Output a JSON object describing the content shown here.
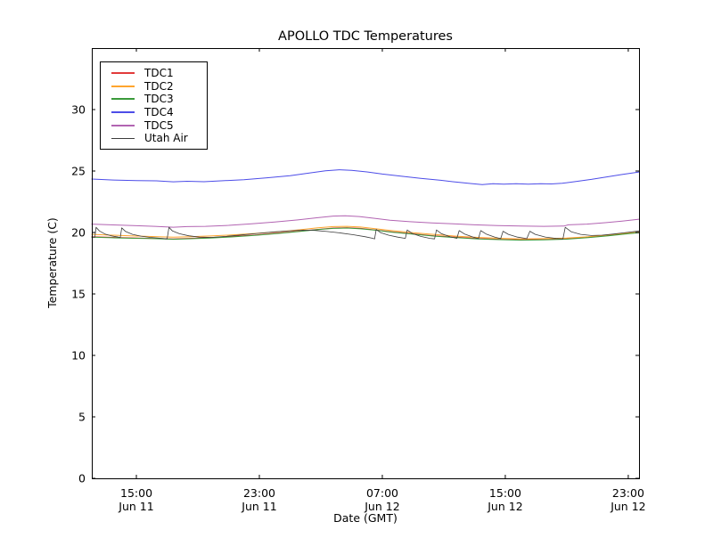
{
  "figure": {
    "title": "APOLLO TDC Temperatures",
    "xlabel": "Date (GMT)",
    "ylabel": "Temperature (C)"
  },
  "legend": {
    "position": "upper left",
    "items": [
      {
        "label": "TDC1",
        "color": "#e23b3b"
      },
      {
        "label": "TDC2",
        "color": "#ffa52e"
      },
      {
        "label": "TDC3",
        "color": "#3a9a3a"
      },
      {
        "label": "TDC4",
        "color": "#4d4de8"
      },
      {
        "label": "TDC5",
        "color": "#b264b2"
      },
      {
        "label": "Utah Air",
        "color": "#3c3c3c"
      }
    ]
  },
  "chart_data": {
    "type": "line",
    "title": "APOLLO TDC Temperatures",
    "xlabel": "Date (GMT)",
    "ylabel": "Temperature (C)",
    "x_unit": "hours since Jun 11 00:00 GMT",
    "xlim": [
      12.1,
      47.7
    ],
    "ylim": [
      0,
      35
    ],
    "grid": false,
    "y_ticks": [
      0,
      5,
      10,
      15,
      20,
      25,
      30
    ],
    "x_ticks": [
      {
        "hour": 15,
        "time": "15:00",
        "date": "Jun 11"
      },
      {
        "hour": 23,
        "time": "23:00",
        "date": "Jun 11"
      },
      {
        "hour": 31,
        "time": "07:00",
        "date": "Jun 12"
      },
      {
        "hour": 39,
        "time": "15:00",
        "date": "Jun 12"
      },
      {
        "hour": 47,
        "time": "23:00",
        "date": "Jun 12"
      }
    ],
    "series": [
      {
        "name": "TDC1",
        "color": "#e23b3b",
        "width": 1,
        "points": [
          [
            12.1,
            19.65
          ],
          [
            14.8,
            19.56
          ],
          [
            17.4,
            19.48
          ],
          [
            19.8,
            19.58
          ],
          [
            22.7,
            19.79
          ],
          [
            25.6,
            20.11
          ],
          [
            27.8,
            20.36
          ],
          [
            28.7,
            20.39
          ],
          [
            29.6,
            20.33
          ],
          [
            31.6,
            20.06
          ],
          [
            34.4,
            19.73
          ],
          [
            37.2,
            19.51
          ],
          [
            38.6,
            19.45
          ],
          [
            40.0,
            19.41
          ],
          [
            41.5,
            19.43
          ],
          [
            43.0,
            19.49
          ],
          [
            44.4,
            19.61
          ],
          [
            45.7,
            19.76
          ],
          [
            46.8,
            19.9
          ],
          [
            47.7,
            20.0
          ]
        ]
      },
      {
        "name": "TDC2",
        "color": "#ffa52e",
        "width": 1,
        "points": [
          [
            12.1,
            19.85
          ],
          [
            13.4,
            19.78
          ],
          [
            14.8,
            19.72
          ],
          [
            16.2,
            19.67
          ],
          [
            17.4,
            19.62
          ],
          [
            18.5,
            19.66
          ],
          [
            19.8,
            19.72
          ],
          [
            21.2,
            19.8
          ],
          [
            22.7,
            19.92
          ],
          [
            24.2,
            20.06
          ],
          [
            25.6,
            20.22
          ],
          [
            26.8,
            20.38
          ],
          [
            27.8,
            20.48
          ],
          [
            28.7,
            20.5
          ],
          [
            29.6,
            20.44
          ],
          [
            30.6,
            20.3
          ],
          [
            31.6,
            20.15
          ],
          [
            33.0,
            19.98
          ],
          [
            34.4,
            19.83
          ],
          [
            35.8,
            19.7
          ],
          [
            37.2,
            19.6
          ],
          [
            38.6,
            19.53
          ],
          [
            40.0,
            19.48
          ],
          [
            41.5,
            19.5
          ],
          [
            43.0,
            19.55
          ],
          [
            44.4,
            19.65
          ],
          [
            45.7,
            19.8
          ],
          [
            46.8,
            19.93
          ],
          [
            47.7,
            20.03
          ]
        ]
      },
      {
        "name": "TDC3",
        "color": "#3a9a3a",
        "width": 1,
        "points": [
          [
            12.1,
            19.62
          ],
          [
            13.4,
            19.57
          ],
          [
            14.8,
            19.53
          ],
          [
            16.2,
            19.5
          ],
          [
            17.4,
            19.45
          ],
          [
            18.5,
            19.49
          ],
          [
            19.8,
            19.55
          ],
          [
            21.2,
            19.64
          ],
          [
            22.7,
            19.76
          ],
          [
            24.2,
            19.92
          ],
          [
            25.6,
            20.08
          ],
          [
            26.8,
            20.23
          ],
          [
            27.8,
            20.33
          ],
          [
            28.7,
            20.36
          ],
          [
            29.6,
            20.3
          ],
          [
            30.6,
            20.18
          ],
          [
            31.6,
            20.03
          ],
          [
            33.0,
            19.86
          ],
          [
            34.4,
            19.7
          ],
          [
            35.8,
            19.58
          ],
          [
            37.2,
            19.48
          ],
          [
            38.6,
            19.42
          ],
          [
            40.0,
            19.38
          ],
          [
            41.5,
            19.4
          ],
          [
            43.0,
            19.46
          ],
          [
            44.4,
            19.58
          ],
          [
            45.7,
            19.73
          ],
          [
            46.8,
            19.88
          ],
          [
            47.7,
            19.98
          ]
        ]
      },
      {
        "name": "TDC4",
        "color": "#4d4de8",
        "width": 1,
        "points": [
          [
            12.1,
            24.35
          ],
          [
            13.5,
            24.27
          ],
          [
            15.0,
            24.22
          ],
          [
            16.3,
            24.2
          ],
          [
            17.4,
            24.12
          ],
          [
            18.3,
            24.17
          ],
          [
            19.4,
            24.13
          ],
          [
            20.5,
            24.2
          ],
          [
            22.0,
            24.3
          ],
          [
            23.5,
            24.45
          ],
          [
            25.0,
            24.62
          ],
          [
            26.3,
            24.85
          ],
          [
            27.3,
            25.02
          ],
          [
            28.2,
            25.1
          ],
          [
            29.0,
            25.06
          ],
          [
            30.0,
            24.93
          ],
          [
            31.0,
            24.75
          ],
          [
            32.2,
            24.58
          ],
          [
            33.5,
            24.4
          ],
          [
            34.8,
            24.25
          ],
          [
            35.8,
            24.1
          ],
          [
            36.8,
            23.98
          ],
          [
            37.5,
            23.9
          ],
          [
            38.2,
            23.97
          ],
          [
            38.9,
            23.93
          ],
          [
            39.7,
            23.97
          ],
          [
            40.5,
            23.93
          ],
          [
            41.3,
            23.97
          ],
          [
            42.0,
            23.95
          ],
          [
            42.7,
            24.0
          ],
          [
            43.6,
            24.15
          ],
          [
            44.6,
            24.32
          ],
          [
            45.6,
            24.52
          ],
          [
            46.6,
            24.72
          ],
          [
            47.7,
            24.92
          ]
        ]
      },
      {
        "name": "TDC5",
        "color": "#b264b2",
        "width": 1,
        "points": [
          [
            12.1,
            20.68
          ],
          [
            13.3,
            20.62
          ],
          [
            14.8,
            20.56
          ],
          [
            16.2,
            20.5
          ],
          [
            17.4,
            20.43
          ],
          [
            18.3,
            20.48
          ],
          [
            19.5,
            20.5
          ],
          [
            21.0,
            20.58
          ],
          [
            22.5,
            20.7
          ],
          [
            24.0,
            20.85
          ],
          [
            25.5,
            21.02
          ],
          [
            26.8,
            21.2
          ],
          [
            27.8,
            21.33
          ],
          [
            28.6,
            21.36
          ],
          [
            29.5,
            21.3
          ],
          [
            30.5,
            21.15
          ],
          [
            31.5,
            21.0
          ],
          [
            32.8,
            20.88
          ],
          [
            34.2,
            20.78
          ],
          [
            35.6,
            20.7
          ],
          [
            37.0,
            20.62
          ],
          [
            38.5,
            20.56
          ],
          [
            40.0,
            20.52
          ],
          [
            41.5,
            20.5
          ],
          [
            42.8,
            20.52
          ],
          [
            43.1,
            20.62
          ],
          [
            44.3,
            20.68
          ],
          [
            45.5,
            20.8
          ],
          [
            46.6,
            20.93
          ],
          [
            47.7,
            21.08
          ]
        ]
      },
      {
        "name": "Utah Air",
        "color": "#3c3c3c",
        "width": 0.8,
        "points": [
          [
            12.1,
            19.62
          ],
          [
            12.3,
            19.6
          ],
          [
            12.38,
            20.42
          ],
          [
            12.6,
            20.12
          ],
          [
            12.95,
            19.88
          ],
          [
            13.4,
            19.72
          ],
          [
            13.85,
            19.62
          ],
          [
            13.95,
            19.58
          ],
          [
            14.05,
            20.38
          ],
          [
            14.3,
            20.08
          ],
          [
            14.75,
            19.85
          ],
          [
            15.3,
            19.7
          ],
          [
            15.9,
            19.6
          ],
          [
            16.6,
            19.53
          ],
          [
            17.0,
            19.48
          ],
          [
            17.12,
            20.42
          ],
          [
            17.35,
            20.12
          ],
          [
            17.8,
            19.9
          ],
          [
            18.4,
            19.73
          ],
          [
            19.1,
            19.62
          ],
          [
            19.9,
            19.6
          ],
          [
            20.8,
            19.68
          ],
          [
            21.8,
            19.8
          ],
          [
            22.9,
            19.93
          ],
          [
            24.0,
            20.05
          ],
          [
            25.0,
            20.14
          ],
          [
            25.8,
            20.19
          ],
          [
            26.6,
            20.17
          ],
          [
            27.4,
            20.08
          ],
          [
            28.2,
            19.97
          ],
          [
            29.1,
            19.82
          ],
          [
            29.9,
            19.65
          ],
          [
            30.4,
            19.52
          ],
          [
            30.5,
            19.48
          ],
          [
            30.6,
            20.25
          ],
          [
            30.9,
            19.98
          ],
          [
            31.4,
            19.78
          ],
          [
            32.0,
            19.62
          ],
          [
            32.5,
            19.52
          ],
          [
            32.62,
            20.2
          ],
          [
            32.95,
            19.92
          ],
          [
            33.5,
            19.68
          ],
          [
            34.1,
            19.52
          ],
          [
            34.4,
            19.48
          ],
          [
            34.52,
            20.2
          ],
          [
            34.85,
            19.9
          ],
          [
            35.4,
            19.65
          ],
          [
            35.85,
            19.52
          ],
          [
            36.0,
            20.15
          ],
          [
            36.35,
            19.88
          ],
          [
            36.9,
            19.63
          ],
          [
            37.25,
            19.5
          ],
          [
            37.4,
            20.15
          ],
          [
            37.75,
            19.88
          ],
          [
            38.3,
            19.63
          ],
          [
            38.7,
            19.5
          ],
          [
            38.85,
            20.1
          ],
          [
            39.2,
            19.85
          ],
          [
            39.8,
            19.62
          ],
          [
            40.4,
            19.5
          ],
          [
            40.6,
            20.1
          ],
          [
            40.95,
            19.85
          ],
          [
            41.6,
            19.63
          ],
          [
            42.3,
            19.52
          ],
          [
            42.75,
            19.47
          ],
          [
            42.9,
            20.42
          ],
          [
            43.3,
            20.05
          ],
          [
            43.9,
            19.85
          ],
          [
            44.6,
            19.75
          ],
          [
            45.3,
            19.78
          ],
          [
            46.0,
            19.87
          ],
          [
            46.7,
            19.97
          ],
          [
            47.3,
            20.06
          ],
          [
            47.7,
            20.12
          ]
        ]
      }
    ]
  }
}
